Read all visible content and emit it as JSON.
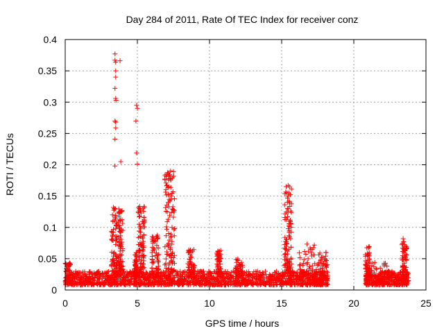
{
  "chart_data": {
    "type": "scatter",
    "title": "Day 284 of 2011, Rate Of TEC Index for receiver conz",
    "xlabel": "GPS time / hours",
    "ylabel": "ROTI / TECUs",
    "xlim": [
      0,
      25
    ],
    "ylim": [
      0,
      0.4
    ],
    "xticks": [
      0,
      5,
      10,
      15,
      20,
      25
    ],
    "xtick_labels": [
      "0",
      "5",
      "10",
      "15",
      "20",
      "25"
    ],
    "yticks": [
      0,
      0.05,
      0.1,
      0.15,
      0.2,
      0.25,
      0.3,
      0.35,
      0.4
    ],
    "ytick_labels": [
      "0",
      "0.05",
      "0.1",
      "0.15",
      "0.2",
      "0.25",
      "0.3",
      "0.35",
      "0.4"
    ],
    "grid": true,
    "marker": "+",
    "color": "#ff0000",
    "gap_hours": [
      18.3,
      20.8
    ],
    "baseline_range": [
      0.008,
      0.03
    ],
    "clusters": [
      {
        "x_range": [
          0.0,
          0.4
        ],
        "y_range": [
          0.01,
          0.045
        ]
      },
      {
        "x_range": [
          3.2,
          3.6
        ],
        "y_range": [
          0.02,
          0.132
        ]
      },
      {
        "x_range": [
          3.7,
          4.0
        ],
        "y_range": [
          0.03,
          0.13
        ]
      },
      {
        "x_range": [
          4.8,
          5.0
        ],
        "y_range": [
          0.02,
          0.06
        ]
      },
      {
        "x_range": [
          5.0,
          5.5
        ],
        "y_range": [
          0.02,
          0.135
        ]
      },
      {
        "x_range": [
          6.0,
          6.5
        ],
        "y_range": [
          0.02,
          0.09
        ]
      },
      {
        "x_range": [
          6.9,
          7.6
        ],
        "y_range": [
          0.03,
          0.19
        ]
      },
      {
        "x_range": [
          8.5,
          9.0
        ],
        "y_range": [
          0.02,
          0.065
        ]
      },
      {
        "x_range": [
          10.5,
          10.8
        ],
        "y_range": [
          0.02,
          0.065
        ]
      },
      {
        "x_range": [
          11.8,
          12.3
        ],
        "y_range": [
          0.02,
          0.05
        ]
      },
      {
        "x_range": [
          15.2,
          15.7
        ],
        "y_range": [
          0.03,
          0.167
        ]
      },
      {
        "x_range": [
          16.2,
          17.5
        ],
        "y_range": [
          0.015,
          0.075
        ]
      },
      {
        "x_range": [
          17.5,
          18.2
        ],
        "y_range": [
          0.015,
          0.062
        ]
      },
      {
        "x_range": [
          20.8,
          21.1
        ],
        "y_range": [
          0.015,
          0.07
        ]
      },
      {
        "x_range": [
          21.2,
          22.5
        ],
        "y_range": [
          0.01,
          0.045
        ]
      },
      {
        "x_range": [
          23.3,
          23.7
        ],
        "y_range": [
          0.015,
          0.082
        ]
      }
    ],
    "outliers": [
      [
        3.45,
        0.377
      ],
      [
        3.45,
        0.367
      ],
      [
        3.5,
        0.364
      ],
      [
        3.8,
        0.366
      ],
      [
        3.5,
        0.35
      ],
      [
        3.5,
        0.34
      ],
      [
        3.45,
        0.322
      ],
      [
        3.5,
        0.306
      ],
      [
        3.52,
        0.303
      ],
      [
        3.45,
        0.27
      ],
      [
        3.5,
        0.268
      ],
      [
        3.5,
        0.259
      ],
      [
        3.45,
        0.241
      ],
      [
        3.85,
        0.205
      ],
      [
        3.45,
        0.198
      ],
      [
        4.95,
        0.295
      ],
      [
        5.0,
        0.29
      ],
      [
        4.9,
        0.27
      ],
      [
        4.95,
        0.219
      ],
      [
        5.0,
        0.201
      ],
      [
        7.3,
        0.19
      ],
      [
        7.2,
        0.178
      ],
      [
        7.2,
        0.165
      ],
      [
        7.35,
        0.15
      ],
      [
        15.45,
        0.167
      ],
      [
        15.5,
        0.155
      ],
      [
        15.55,
        0.14
      ],
      [
        15.4,
        0.13
      ]
    ]
  }
}
